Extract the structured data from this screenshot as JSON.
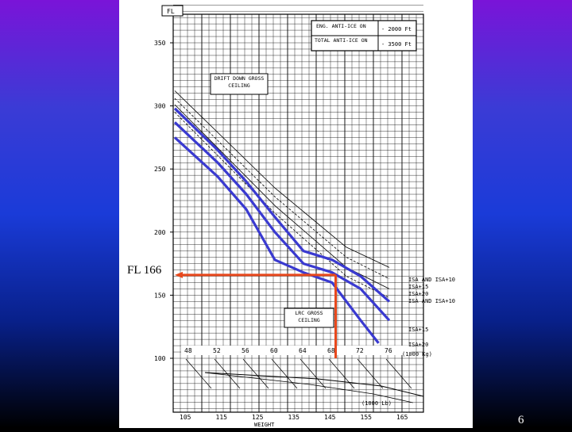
{
  "slide": {
    "number": "6"
  },
  "annotation": {
    "label": "FL 166",
    "value": 166
  },
  "chart_data": {
    "type": "line",
    "ylim": [
      70,
      400
    ],
    "y_ticks": [
      100,
      150,
      200,
      250,
      300,
      350
    ],
    "y_tick_labels": [
      "100",
      "150",
      "200",
      "250",
      "300",
      "350"
    ],
    "y_axis_box_label": "FL",
    "weight_ticks": [
      "48",
      "52",
      "56",
      "60",
      "64",
      "68",
      "72",
      "76"
    ],
    "weight_unit": "(1000 Kg)",
    "lb_ticks": [
      "105",
      "115",
      "125",
      "135",
      "145",
      "155",
      "165"
    ],
    "lb_unit": "(1000 Lb)",
    "x_axis_label": "WEIGHT",
    "correction_table": {
      "rows": [
        {
          "label": "ENG. ANTI-ICE ON",
          "value": "- 2000 Ft"
        },
        {
          "label": "TOTAL ANTI-ICE ON",
          "value": "- 3500 Ft"
        }
      ]
    },
    "drift_down_label": "DRIFT DOWN GROSS CEILING",
    "lrc_label": "LRC GROSS CEILING",
    "right_labels_drift": [
      "ISA AND ISA+10",
      "ISA+15",
      "ISA+20",
      "ISA AND ISA+10"
    ],
    "right_labels_lrc": [
      "ISA+15",
      "ISA+20"
    ],
    "series": [
      {
        "name": "ISA AND ISA+10",
        "x": [
          46,
          52,
          56,
          60,
          64,
          68,
          72,
          76
        ],
        "y": [
          298,
          265,
          240,
          212,
          185,
          178,
          165,
          145
        ]
      },
      {
        "name": "ISA+15",
        "x": [
          46,
          52,
          56,
          60,
          64,
          68,
          72,
          76
        ],
        "y": [
          287,
          255,
          230,
          200,
          175,
          168,
          155,
          130
        ]
      },
      {
        "name": "ISA+20",
        "x": [
          46,
          52,
          56,
          60,
          64,
          68,
          72,
          74.5
        ],
        "y": [
          275,
          244,
          218,
          178,
          168,
          160,
          130,
          112
        ]
      }
    ],
    "annotation_path": {
      "x": [
        68.5,
        68.5
      ],
      "y": [
        100,
        166
      ]
    }
  }
}
